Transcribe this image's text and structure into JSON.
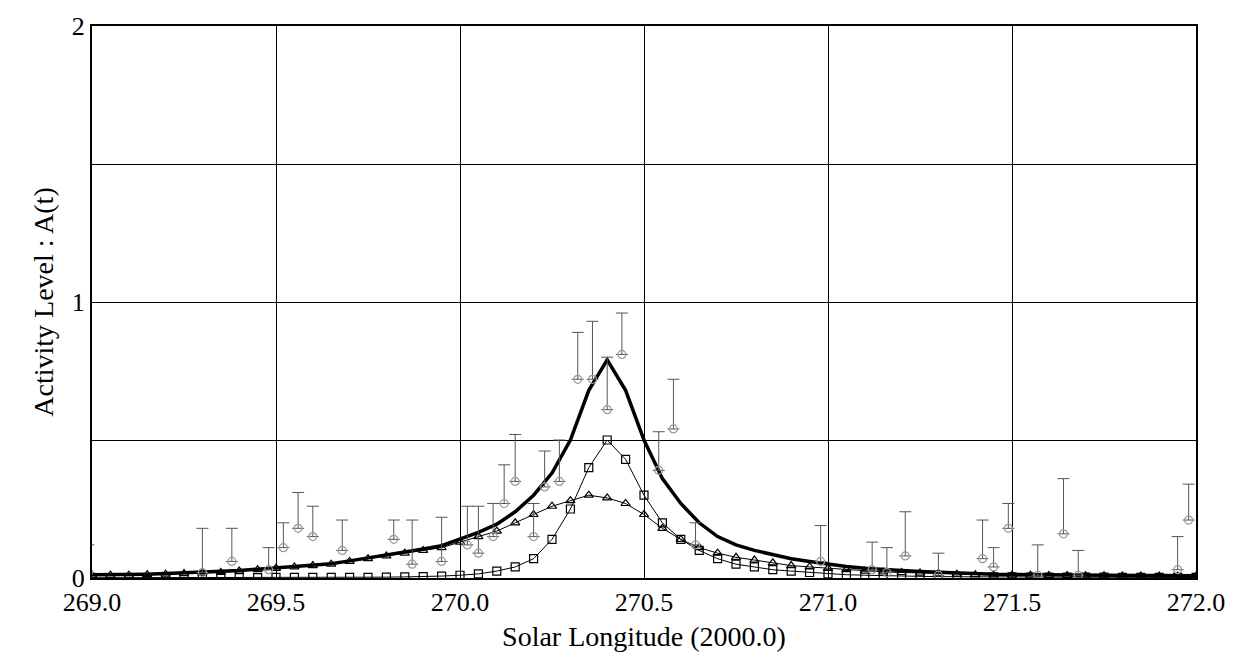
{
  "chart_data": {
    "type": "line",
    "x_label": "Solar Longitude (2000.0)",
    "y_label": "Activity Level : A(t)",
    "xlim": [
      269.0,
      272.0
    ],
    "ylim": [
      0,
      2
    ],
    "xticks": [
      {
        "value": 269.0,
        "label": "269.0"
      },
      {
        "value": 269.5,
        "label": "269.5"
      },
      {
        "value": 270.0,
        "label": "270.0"
      },
      {
        "value": 270.5,
        "label": "270.5"
      },
      {
        "value": 271.0,
        "label": "271.0"
      },
      {
        "value": 271.5,
        "label": "271.5"
      },
      {
        "value": 272.0,
        "label": "272.0"
      }
    ],
    "yticks": [
      0,
      1,
      2
    ],
    "grid": true,
    "series": [
      {
        "color": "#000000",
        "marker": "triangle",
        "line_style": "solid",
        "x": [
          269.0,
          269.05,
          269.1,
          269.15,
          269.2,
          269.25,
          269.3,
          269.35,
          269.4,
          269.45,
          269.5,
          269.55,
          269.6,
          269.65,
          269.7,
          269.75,
          269.8,
          269.85,
          269.9,
          269.95,
          270.0,
          270.05,
          270.1,
          270.15,
          270.2,
          270.25,
          270.3,
          270.35,
          270.4,
          270.45,
          270.5,
          270.55,
          270.6,
          270.65,
          270.7,
          270.75,
          270.8,
          270.85,
          270.9,
          270.95,
          271.0,
          271.05,
          271.1,
          271.15,
          271.2,
          271.25,
          271.3,
          271.35,
          271.4,
          271.45,
          271.5,
          271.55,
          271.6,
          271.65,
          271.7,
          271.75,
          271.8,
          271.85,
          271.9,
          271.95,
          272.0
        ],
        "values": [
          0.01,
          0.01,
          0.01,
          0.012,
          0.014,
          0.016,
          0.018,
          0.02,
          0.025,
          0.03,
          0.035,
          0.04,
          0.045,
          0.05,
          0.06,
          0.07,
          0.08,
          0.09,
          0.1,
          0.11,
          0.13,
          0.15,
          0.17,
          0.2,
          0.23,
          0.26,
          0.28,
          0.3,
          0.29,
          0.27,
          0.23,
          0.18,
          0.14,
          0.11,
          0.09,
          0.075,
          0.065,
          0.055,
          0.045,
          0.04,
          0.035,
          0.03,
          0.025,
          0.022,
          0.02,
          0.018,
          0.016,
          0.014,
          0.012,
          0.011,
          0.01,
          0.01,
          0.009,
          0.009,
          0.008,
          0.008,
          0.007,
          0.007,
          0.007,
          0.006,
          0.006
        ]
      },
      {
        "color": "#000000",
        "marker": "square",
        "line_style": "solid",
        "x": [
          269.0,
          269.05,
          269.1,
          269.15,
          269.2,
          269.25,
          269.3,
          269.35,
          269.4,
          269.45,
          269.5,
          269.55,
          269.6,
          269.65,
          269.7,
          269.75,
          269.8,
          269.85,
          269.9,
          269.95,
          270.0,
          270.05,
          270.1,
          270.15,
          270.2,
          270.25,
          270.3,
          270.35,
          270.4,
          270.45,
          270.5,
          270.55,
          270.6,
          270.65,
          270.7,
          270.75,
          270.8,
          270.85,
          270.9,
          270.95,
          271.0,
          271.05,
          271.1,
          271.15,
          271.2,
          271.25,
          271.3,
          271.35,
          271.4,
          271.45,
          271.5,
          271.55,
          271.6,
          271.65,
          271.7,
          271.75,
          271.8,
          271.85,
          271.9,
          271.95,
          272.0
        ],
        "values": [
          0.001,
          0.001,
          0.001,
          0.001,
          0.001,
          0.001,
          0.001,
          0.001,
          0.001,
          0.001,
          0.002,
          0.002,
          0.002,
          0.002,
          0.002,
          0.002,
          0.003,
          0.004,
          0.005,
          0.007,
          0.01,
          0.015,
          0.025,
          0.04,
          0.07,
          0.14,
          0.25,
          0.4,
          0.5,
          0.43,
          0.3,
          0.2,
          0.14,
          0.1,
          0.07,
          0.05,
          0.04,
          0.03,
          0.025,
          0.02,
          0.015,
          0.012,
          0.01,
          0.008,
          0.007,
          0.006,
          0.005,
          0.004,
          0.004,
          0.004,
          0.004,
          0.003,
          0.003,
          0.003,
          0.003,
          0.003,
          0.002,
          0.002,
          0.002,
          0.002,
          0.002
        ]
      },
      {
        "color": "#000000",
        "marker": "none",
        "line_style": "solid",
        "x": [
          269.0,
          269.05,
          269.1,
          269.15,
          269.2,
          269.25,
          269.3,
          269.35,
          269.4,
          269.45,
          269.5,
          269.55,
          269.6,
          269.65,
          269.7,
          269.75,
          269.8,
          269.85,
          269.9,
          269.95,
          270.0,
          270.05,
          270.1,
          270.15,
          270.2,
          270.25,
          270.3,
          270.35,
          270.4,
          270.45,
          270.5,
          270.55,
          270.6,
          270.65,
          270.7,
          270.75,
          270.8,
          270.85,
          270.9,
          270.95,
          271.0,
          271.05,
          271.1,
          271.15,
          271.2,
          271.25,
          271.3,
          271.35,
          271.4,
          271.45,
          271.5,
          271.55,
          271.6,
          271.65,
          271.7,
          271.75,
          271.8,
          271.85,
          271.9,
          271.95,
          272.0
        ],
        "values": [
          0.012,
          0.012,
          0.012,
          0.014,
          0.016,
          0.018,
          0.02,
          0.022,
          0.027,
          0.032,
          0.037,
          0.042,
          0.047,
          0.052,
          0.062,
          0.072,
          0.083,
          0.094,
          0.105,
          0.117,
          0.14,
          0.165,
          0.195,
          0.24,
          0.3,
          0.38,
          0.5,
          0.68,
          0.79,
          0.68,
          0.5,
          0.36,
          0.27,
          0.2,
          0.15,
          0.12,
          0.1,
          0.085,
          0.07,
          0.06,
          0.05,
          0.042,
          0.035,
          0.03,
          0.027,
          0.024,
          0.021,
          0.018,
          0.016,
          0.014,
          0.013,
          0.012,
          0.011,
          0.011,
          0.01,
          0.01,
          0.009,
          0.009,
          0.009,
          0.008,
          0.008
        ]
      },
      {
        "color": "#999999",
        "marker": "circle",
        "line_style": "none",
        "x": [
          268.99,
          269.3,
          269.38,
          269.48,
          269.52,
          269.56,
          269.6,
          269.68,
          269.82,
          269.87,
          269.95,
          270.02,
          270.05,
          270.09,
          270.12,
          270.15,
          270.2,
          270.23,
          270.27,
          270.32,
          270.36,
          270.4,
          270.44,
          270.54,
          270.58,
          270.64,
          270.98,
          271.12,
          271.16,
          271.21,
          271.3,
          271.42,
          271.45,
          271.49,
          271.57,
          271.64,
          271.68,
          271.95,
          271.98
        ],
        "values": [
          0.02,
          0.02,
          0.06,
          0.03,
          0.11,
          0.18,
          0.15,
          0.1,
          0.14,
          0.05,
          0.06,
          0.12,
          0.09,
          0.15,
          0.27,
          0.35,
          0.15,
          0.33,
          0.35,
          0.72,
          0.72,
          0.61,
          0.81,
          0.39,
          0.54,
          0.12,
          0.06,
          0.03,
          0.02,
          0.08,
          0.01,
          0.07,
          0.04,
          0.18,
          0.01,
          0.16,
          0.01,
          0.03,
          0.21
        ],
        "error": [
          0.1,
          0.16,
          0.12,
          0.08,
          0.09,
          0.13,
          0.11,
          0.11,
          0.07,
          0.16,
          0.16,
          0.14,
          0.17,
          0.12,
          0.14,
          0.17,
          0.12,
          0.13,
          0.15,
          0.17,
          0.21,
          0.19,
          0.15,
          0.14,
          0.18,
          0.08,
          0.13,
          0.1,
          0.09,
          0.16,
          0.08,
          0.14,
          0.07,
          0.09,
          0.11,
          0.2,
          0.09,
          0.12,
          0.13
        ]
      }
    ]
  }
}
